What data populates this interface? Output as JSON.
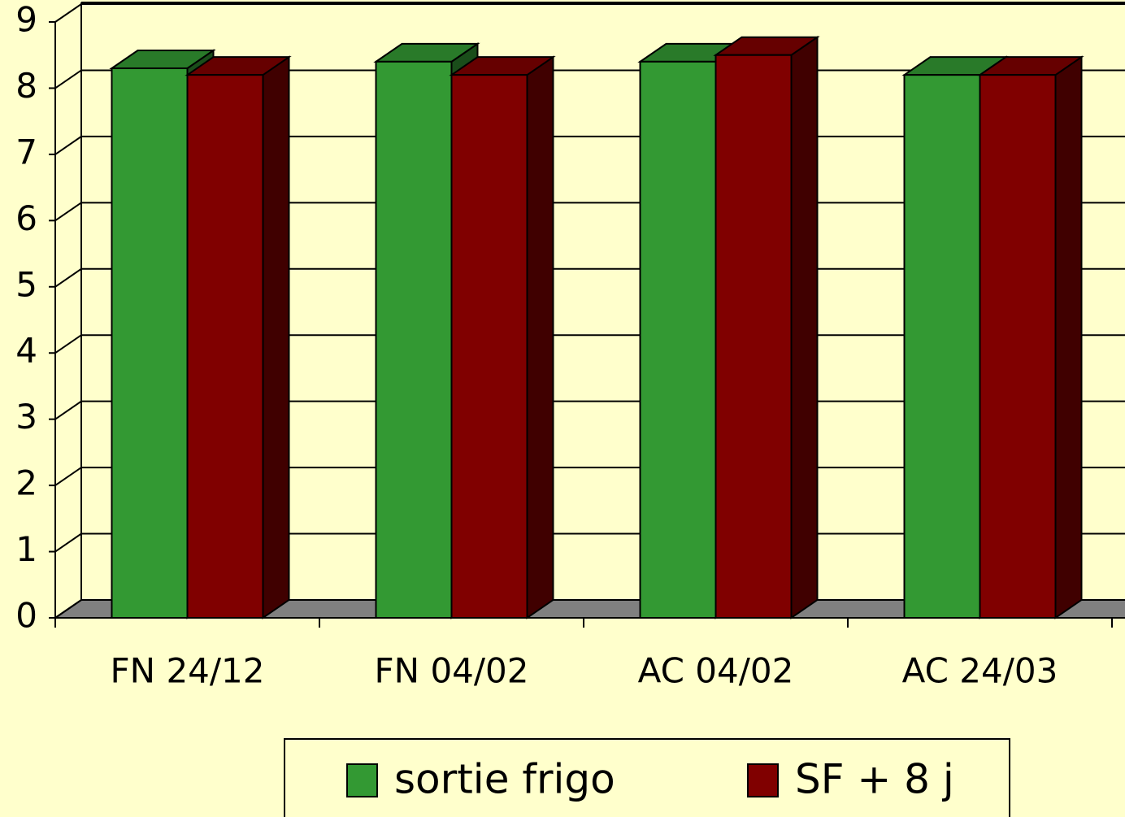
{
  "chart_data": {
    "type": "bar3d",
    "categories": [
      "FN 24/12",
      "FN 04/02",
      "AC 04/02",
      "AC 24/03"
    ],
    "series": [
      {
        "name": "sortie frigo",
        "color": "#339933",
        "values": [
          8.3,
          8.4,
          8.4,
          8.2
        ]
      },
      {
        "name": "SF + 8 j",
        "color": "#800000",
        "values": [
          8.2,
          8.2,
          8.5,
          8.2
        ]
      }
    ],
    "ylim": [
      0,
      9
    ],
    "yticks": [
      0,
      1,
      2,
      3,
      4,
      5,
      6,
      7,
      8,
      9
    ],
    "grid": true,
    "legend": "bottom"
  }
}
